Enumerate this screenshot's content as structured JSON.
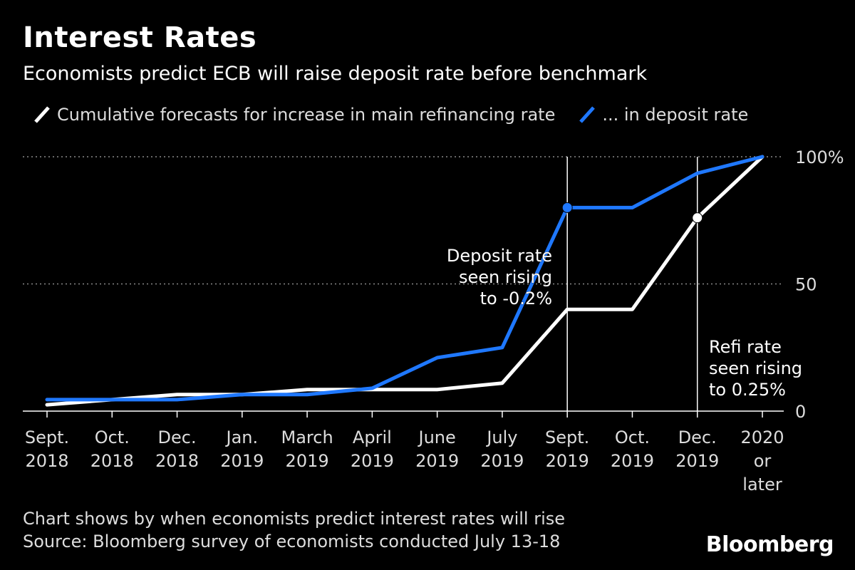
{
  "title": "Interest Rates",
  "subtitle": "Economists predict ECB will raise deposit rate before benchmark",
  "legend": [
    {
      "label": "Cumulative forecasts for increase in main refinancing rate",
      "color": "#ffffff"
    },
    {
      "label": "... in deposit rate",
      "color": "#1f78ff"
    }
  ],
  "footer": {
    "note": "Chart shows by when economists predict interest rates will rise",
    "source": "Source: Bloomberg survey of economists conducted July 13-18"
  },
  "brand": "Bloomberg",
  "chart_data": {
    "type": "line",
    "categories": [
      [
        "Sept.",
        "2018"
      ],
      [
        "Oct.",
        "2018"
      ],
      [
        "Dec.",
        "2018"
      ],
      [
        "Jan.",
        "2019"
      ],
      [
        "March",
        "2019"
      ],
      [
        "April",
        "2019"
      ],
      [
        "June",
        "2019"
      ],
      [
        "July",
        "2019"
      ],
      [
        "Sept.",
        "2019"
      ],
      [
        "Oct.",
        "2019"
      ],
      [
        "Dec.",
        "2019"
      ],
      [
        "2020",
        "or",
        "later"
      ]
    ],
    "series": [
      {
        "name": "Cumulative forecasts for increase in main refinancing rate",
        "color": "#ffffff",
        "values": [
          2.5,
          4.5,
          6.5,
          6.5,
          8.5,
          8.5,
          8.5,
          11,
          40,
          40,
          76,
          100
        ]
      },
      {
        "name": "... in deposit rate",
        "color": "#1f78ff",
        "values": [
          4.5,
          4.5,
          4.5,
          6.5,
          6.5,
          9,
          21,
          25,
          80,
          80,
          93.5,
          100
        ]
      }
    ],
    "ylim": [
      0,
      100
    ],
    "yticks": [
      {
        "value": 0,
        "label": "0"
      },
      {
        "value": 50,
        "label": "50"
      },
      {
        "value": 100,
        "label": "100%"
      }
    ],
    "grid": true,
    "annotations": [
      {
        "category_index": 8,
        "series": 1,
        "lines": [
          "Deposit rate",
          "seen rising",
          "to -0.2%"
        ]
      },
      {
        "category_index": 10,
        "series": 0,
        "lines": [
          "Refi rate",
          "seen rising",
          "to 0.25%"
        ]
      }
    ]
  }
}
